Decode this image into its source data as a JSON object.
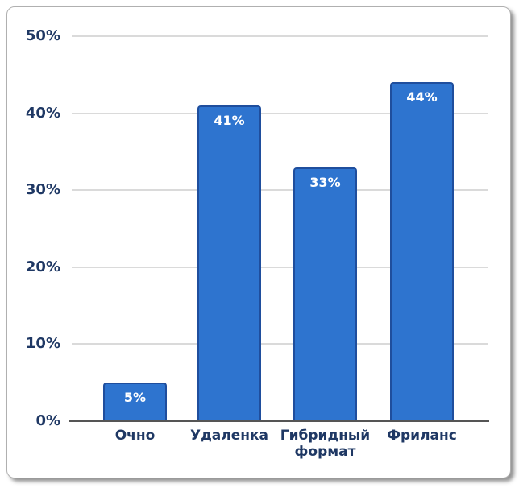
{
  "chart_data": {
    "type": "bar",
    "categories": [
      "Очно",
      "Удаленка",
      "Гибридный формат",
      "Фриланс"
    ],
    "values": [
      5,
      41,
      33,
      44
    ],
    "data_labels": [
      "5%",
      "41%",
      "33%",
      "44%"
    ],
    "title": "",
    "xlabel": "",
    "ylabel": "",
    "ylim": [
      0,
      50
    ],
    "yticks": [
      {
        "value": 0,
        "label": "0%"
      },
      {
        "value": 10,
        "label": "10%"
      },
      {
        "value": 20,
        "label": "20%"
      },
      {
        "value": 30,
        "label": "30%"
      },
      {
        "value": 40,
        "label": "40%"
      },
      {
        "value": 50,
        "label": "50%"
      }
    ],
    "grid": true,
    "legend_position": "none",
    "colors": {
      "bar_fill": "#2E74CF",
      "bar_border": "#1F4E9D",
      "axis_text": "#1F3864",
      "data_label_text": "#FFFFFF",
      "gridline": "#DADADA",
      "axis_line": "#555555",
      "card_background": "#FFFFFF"
    }
  }
}
